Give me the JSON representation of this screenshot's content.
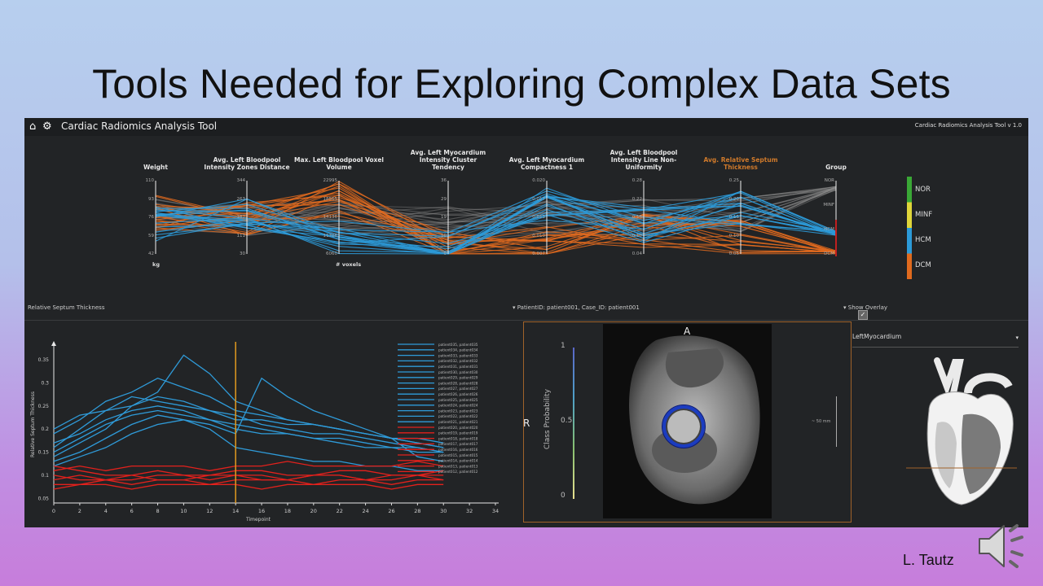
{
  "slide": {
    "title": "Tools Needed for Exploring Complex Data Sets",
    "author": "L. Tautz"
  },
  "app": {
    "title": "Cardiac Radiomics Analysis Tool",
    "version": "Cardiac Radiomics Analysis Tool v 1.0",
    "icons": [
      "home-icon",
      "gear-icon"
    ]
  },
  "parallel_coords": {
    "axes": [
      {
        "label": "Weight",
        "unit": "kg",
        "ticks": [
          "110",
          "93",
          "76",
          "59",
          "42"
        ]
      },
      {
        "label": "Avg. Left Bloodpool Intensity Zones Distance",
        "unit": "",
        "ticks": [
          "344",
          "263",
          "182",
          "111",
          "30"
        ]
      },
      {
        "label": "Max. Left Bloodpool Voxel Volume",
        "unit": "# voxels",
        "ticks": [
          "22995",
          "18565",
          "14136",
          "11706",
          "6060"
        ]
      },
      {
        "label": "Avg. Left Myocardium Intensity Cluster Tendency",
        "unit": "",
        "ticks": [
          "36",
          "29",
          "19",
          "10",
          "0"
        ]
      },
      {
        "label": "Avg. Left Myocardium Compactness 1",
        "unit": "",
        "ticks": [
          "0.020",
          "0.017",
          "0.013",
          "0.010",
          "0.007"
        ]
      },
      {
        "label": "Avg. Left Bloodpool Intensity Line Non-Uniformity",
        "unit": "",
        "ticks": [
          "0.28",
          "0.22",
          "0.16",
          "0.10",
          "0.04"
        ]
      },
      {
        "label": "Avg. Relative Septum Thickness",
        "unit": "",
        "ticks": [
          "0.25",
          "0.20",
          "0.15",
          "0.10",
          "0.05"
        ],
        "highlighted": true
      },
      {
        "label": "Group",
        "unit": "",
        "ticks": [
          "NOR",
          "MINF",
          "HCM",
          "DCM"
        ]
      }
    ],
    "legend": [
      {
        "label": "NOR",
        "color": "#3aa836"
      },
      {
        "label": "MINF",
        "color": "#e0d63a"
      },
      {
        "label": "HCM",
        "color": "#2c9ad8"
      },
      {
        "label": "DCM",
        "color": "#e06a1e"
      }
    ]
  },
  "lower_toolbar": {
    "left_label": "Relative Septum Thickness",
    "patient_select": "PatientID: patient001, Case_ID: patient001",
    "overlay_label": "Show Overlay",
    "overlay_checked": "✓"
  },
  "chart_data": {
    "type": "line",
    "title": "",
    "xlabel": "Timepoint",
    "ylabel": "Relative Septum Thickness",
    "xlim": [
      0,
      34
    ],
    "ylim": [
      0.04,
      0.38
    ],
    "x_ticks": [
      "0",
      "2",
      "4",
      "6",
      "8",
      "10",
      "12",
      "14",
      "16",
      "18",
      "20",
      "22",
      "24",
      "26",
      "28",
      "30",
      "32",
      "34"
    ],
    "y_ticks": [
      "0.05",
      "0.1",
      "0.15",
      "0.2",
      "0.25",
      "0.3",
      "0.35"
    ],
    "cursor_x": 14,
    "x": [
      0,
      2,
      4,
      6,
      8,
      10,
      12,
      14,
      16,
      18,
      20,
      22,
      24,
      26,
      28,
      30
    ],
    "series": [
      {
        "group": "HCM",
        "values": [
          0.19,
          0.22,
          0.26,
          0.28,
          0.31,
          0.29,
          0.27,
          0.24,
          0.23,
          0.22,
          0.21,
          0.2,
          0.19,
          0.18,
          0.17,
          0.16
        ]
      },
      {
        "group": "HCM",
        "values": [
          0.16,
          0.2,
          0.24,
          0.27,
          0.26,
          0.25,
          0.24,
          0.22,
          0.22,
          0.21,
          0.21,
          0.2,
          0.19,
          0.18,
          0.18,
          0.17
        ]
      },
      {
        "group": "HCM",
        "values": [
          0.14,
          0.17,
          0.2,
          0.25,
          0.27,
          0.26,
          0.24,
          0.23,
          0.21,
          0.2,
          0.19,
          0.19,
          0.18,
          0.17,
          0.16,
          0.15
        ]
      },
      {
        "group": "HCM",
        "values": [
          0.2,
          0.23,
          0.24,
          0.25,
          0.28,
          0.36,
          0.32,
          0.26,
          0.24,
          0.22,
          0.21,
          0.2,
          0.19,
          0.18,
          0.17,
          0.16
        ]
      },
      {
        "group": "HCM",
        "values": [
          0.13,
          0.15,
          0.18,
          0.21,
          0.23,
          0.22,
          0.2,
          0.16,
          0.15,
          0.14,
          0.13,
          0.13,
          0.12,
          0.12,
          0.11,
          0.11
        ]
      },
      {
        "group": "HCM",
        "values": [
          0.17,
          0.19,
          0.22,
          0.24,
          0.25,
          0.24,
          0.22,
          0.21,
          0.2,
          0.19,
          0.18,
          0.18,
          0.17,
          0.16,
          0.16,
          0.15
        ]
      },
      {
        "group": "HCM",
        "values": [
          0.15,
          0.18,
          0.21,
          0.23,
          0.24,
          0.23,
          0.22,
          0.2,
          0.19,
          0.19,
          0.18,
          0.17,
          0.16,
          0.16,
          0.15,
          0.15
        ]
      },
      {
        "group": "HCM",
        "values": [
          0.12,
          0.14,
          0.16,
          0.19,
          0.21,
          0.22,
          0.21,
          0.19,
          0.31,
          0.27,
          0.24,
          0.22,
          0.2,
          0.18,
          0.14,
          0.13
        ]
      },
      {
        "group": "DCM",
        "values": [
          0.12,
          0.11,
          0.1,
          0.1,
          0.11,
          0.1,
          0.1,
          0.11,
          0.11,
          0.1,
          0.1,
          0.11,
          0.11,
          0.1,
          0.1,
          0.11
        ]
      },
      {
        "group": "DCM",
        "values": [
          0.1,
          0.09,
          0.09,
          0.1,
          0.09,
          0.09,
          0.1,
          0.1,
          0.09,
          0.09,
          0.1,
          0.1,
          0.09,
          0.09,
          0.1,
          0.1
        ]
      },
      {
        "group": "DCM",
        "values": [
          0.08,
          0.08,
          0.09,
          0.08,
          0.09,
          0.09,
          0.08,
          0.09,
          0.09,
          0.09,
          0.08,
          0.09,
          0.09,
          0.08,
          0.09,
          0.09
        ]
      },
      {
        "group": "DCM",
        "values": [
          0.09,
          0.1,
          0.09,
          0.09,
          0.1,
          0.1,
          0.09,
          0.1,
          0.1,
          0.09,
          0.1,
          0.1,
          0.09,
          0.1,
          0.1,
          0.09
        ]
      },
      {
        "group": "DCM",
        "values": [
          0.11,
          0.12,
          0.11,
          0.12,
          0.12,
          0.12,
          0.11,
          0.12,
          0.12,
          0.13,
          0.12,
          0.12,
          0.12,
          0.12,
          0.13,
          0.12
        ]
      },
      {
        "group": "DCM",
        "values": [
          0.07,
          0.08,
          0.08,
          0.07,
          0.08,
          0.08,
          0.08,
          0.08,
          0.07,
          0.08,
          0.08,
          0.08,
          0.08,
          0.07,
          0.08,
          0.08
        ]
      }
    ],
    "colors": {
      "HCM": "#2f9bd9",
      "DCM": "#e3211c"
    }
  },
  "patient_list": [
    "patient035, patient035",
    "patient034, patient034",
    "patient033, patient033",
    "patient032, patient032",
    "patient031, patient031",
    "patient030, patient030",
    "patient029, patient029",
    "patient028, patient028",
    "patient027, patient027",
    "patient026, patient026",
    "patient025, patient025",
    "patient024, patient024",
    "patient023, patient023",
    "patient022, patient022",
    "patient021, patient021",
    "patient020, patient020",
    "patient019, patient019",
    "patient018, patient018",
    "patient017, patient017",
    "patient016, patient016",
    "patient015, patient015",
    "patient014, patient014",
    "patient013, patient013",
    "patient012, patient012"
  ],
  "image_view": {
    "orientation_top": "A",
    "orientation_left": "R",
    "colorbar_label": "Class Probability",
    "colorbar_ticks": [
      "1",
      "0.5",
      "0"
    ],
    "scale_label": "~ 50 mm"
  },
  "structure_select": {
    "value": "LeftMyocardium"
  }
}
